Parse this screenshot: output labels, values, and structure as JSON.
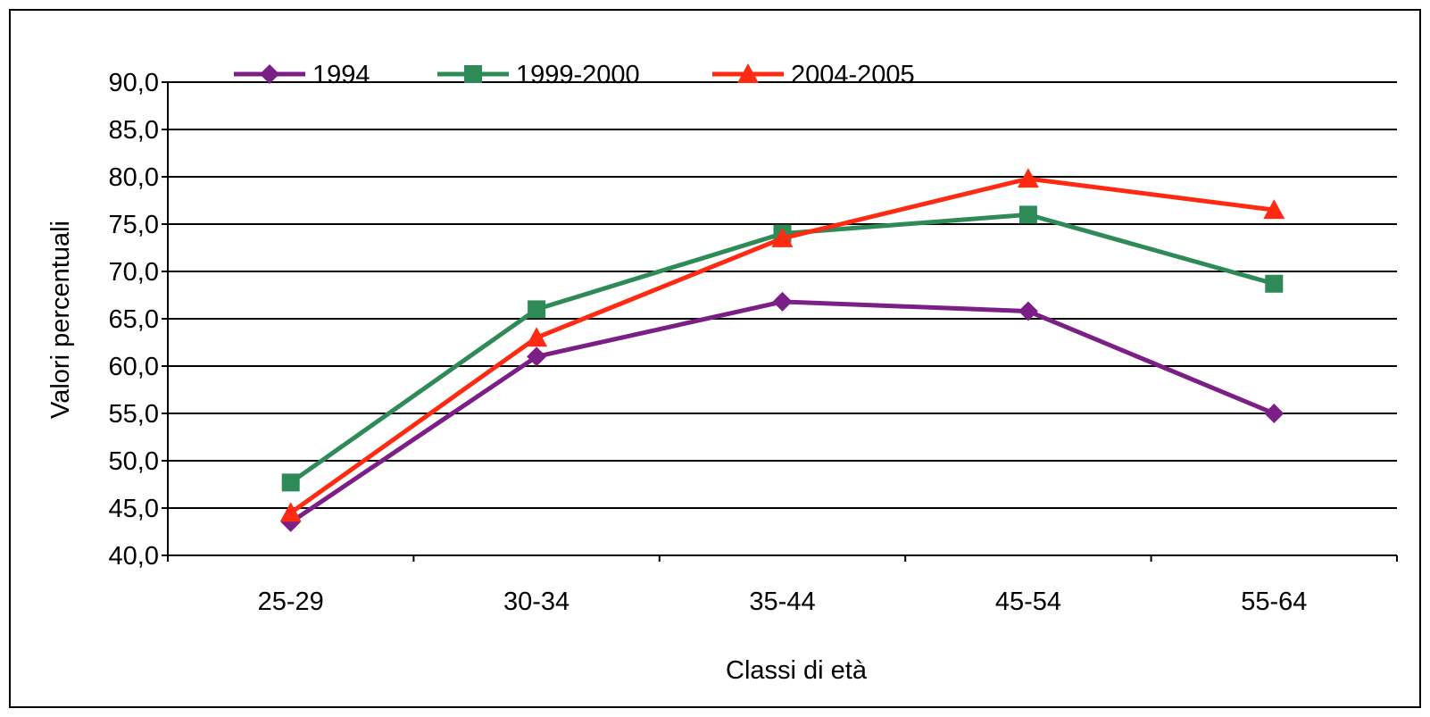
{
  "chart_data": {
    "type": "line",
    "categories": [
      "25-29",
      "30-34",
      "35-44",
      "45-54",
      "55-64"
    ],
    "xlabel": "Classi di età",
    "ylabel": "Valori percentuali",
    "ylim": [
      40,
      90
    ],
    "ytick_step": 5,
    "ytick_labels": [
      "40,0",
      "45,0",
      "50,0",
      "55,0",
      "60,0",
      "65,0",
      "70,0",
      "75,0",
      "80,0",
      "85,0",
      "90,0"
    ],
    "grid": true,
    "legend_position": "top",
    "series": [
      {
        "name": "1994",
        "values": [
          43.5,
          61.0,
          66.8,
          65.8,
          55.0
        ],
        "color": "#7B1E86",
        "marker": "diamond"
      },
      {
        "name": "1999-2000",
        "values": [
          47.7,
          66.0,
          74.0,
          76.0,
          68.7
        ],
        "color": "#2E8B57",
        "marker": "square"
      },
      {
        "name": "2004-2005",
        "values": [
          44.5,
          63.0,
          73.5,
          79.8,
          76.5
        ],
        "color": "#FF2A12",
        "marker": "triangle"
      }
    ]
  }
}
